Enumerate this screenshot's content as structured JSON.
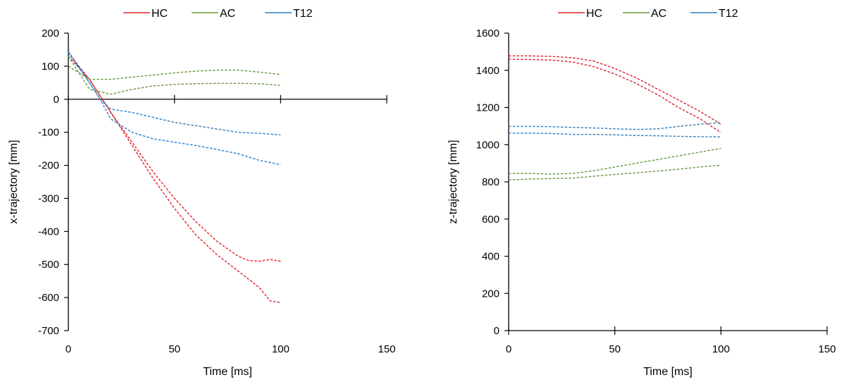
{
  "chart_data": [
    {
      "type": "line",
      "xlabel": "Time [ms]",
      "ylabel": "x-trajectory [mm]",
      "xlim": [
        0,
        150
      ],
      "ylim": [
        -700,
        200
      ],
      "xticks": [
        0,
        50,
        100,
        150
      ],
      "yticks": [
        200,
        100,
        0,
        -100,
        -200,
        -300,
        -400,
        -500,
        -600,
        -700
      ],
      "legend": {
        "position": "top",
        "entries": [
          {
            "label": "HC",
            "color": "#e0202a"
          },
          {
            "label": "AC",
            "color": "#6a9a3a"
          },
          {
            "label": "T12",
            "color": "#2a7ec4"
          }
        ]
      },
      "series": [
        {
          "group": "HC",
          "color": "#e0202a",
          "line": "dashed",
          "x": [
            0,
            10,
            20,
            30,
            40,
            50,
            60,
            70,
            80,
            90,
            95,
            100
          ],
          "y": [
            140,
            60,
            -40,
            -140,
            -240,
            -330,
            -410,
            -470,
            -520,
            -570,
            -610,
            -615
          ]
        },
        {
          "group": "HC",
          "color": "#e0202a",
          "line": "dashed",
          "x": [
            0,
            10,
            20,
            30,
            40,
            50,
            60,
            70,
            80,
            85,
            90,
            95,
            100
          ],
          "y": [
            130,
            60,
            -40,
            -130,
            -220,
            -300,
            -370,
            -430,
            -475,
            -488,
            -490,
            -485,
            -490
          ]
        },
        {
          "group": "AC",
          "color": "#6a9a3a",
          "line": "dashed",
          "x": [
            0,
            10,
            20,
            30,
            40,
            50,
            60,
            70,
            80,
            90,
            100
          ],
          "y": [
            100,
            60,
            60,
            67,
            73,
            80,
            85,
            88,
            88,
            82,
            75
          ]
        },
        {
          "group": "AC",
          "color": "#6a9a3a",
          "line": "dashed",
          "x": [
            0,
            10,
            20,
            30,
            40,
            50,
            60,
            70,
            80,
            90,
            100
          ],
          "y": [
            130,
            30,
            15,
            30,
            40,
            45,
            47,
            48,
            48,
            47,
            42
          ]
        },
        {
          "group": "T12",
          "color": "#2a7ec4",
          "line": "dashed",
          "x": [
            0,
            10,
            15,
            20,
            30,
            40,
            50,
            60,
            70,
            80,
            90,
            100
          ],
          "y": [
            140,
            50,
            0,
            -30,
            -40,
            -55,
            -70,
            -80,
            -90,
            -100,
            -103,
            -108
          ]
        },
        {
          "group": "T12",
          "color": "#2a7ec4",
          "line": "dashed",
          "x": [
            0,
            10,
            15,
            20,
            30,
            40,
            50,
            60,
            70,
            80,
            90,
            100
          ],
          "y": [
            145,
            50,
            0,
            -60,
            -100,
            -120,
            -130,
            -140,
            -152,
            -165,
            -185,
            -198
          ]
        }
      ]
    },
    {
      "type": "line",
      "xlabel": "Time [ms]",
      "ylabel": "z-trajectory [mm]",
      "xlim": [
        0,
        150
      ],
      "ylim": [
        0,
        1600
      ],
      "xticks": [
        0,
        50,
        100,
        150
      ],
      "yticks": [
        1600,
        1400,
        1200,
        1000,
        800,
        600,
        400,
        200,
        0
      ],
      "legend": {
        "position": "top",
        "entries": [
          {
            "label": "HC",
            "color": "#e0202a"
          },
          {
            "label": "AC",
            "color": "#6a9a3a"
          },
          {
            "label": "T12",
            "color": "#2a7ec4"
          }
        ]
      },
      "series": [
        {
          "group": "HC",
          "color": "#e0202a",
          "line": "dashed",
          "x": [
            0,
            10,
            20,
            30,
            40,
            50,
            60,
            70,
            80,
            90,
            100
          ],
          "y": [
            1478,
            1478,
            1475,
            1468,
            1450,
            1410,
            1360,
            1300,
            1240,
            1180,
            1110
          ]
        },
        {
          "group": "HC",
          "color": "#e0202a",
          "line": "dashed",
          "x": [
            0,
            10,
            20,
            30,
            40,
            50,
            60,
            70,
            80,
            90,
            100
          ],
          "y": [
            1460,
            1458,
            1455,
            1445,
            1420,
            1380,
            1330,
            1270,
            1200,
            1140,
            1065
          ]
        },
        {
          "group": "AC",
          "color": "#6a9a3a",
          "line": "dashed",
          "x": [
            0,
            10,
            20,
            30,
            40,
            50,
            60,
            70,
            80,
            90,
            100
          ],
          "y": [
            845,
            845,
            842,
            845,
            860,
            880,
            900,
            920,
            940,
            960,
            980
          ]
        },
        {
          "group": "AC",
          "color": "#6a9a3a",
          "line": "dashed",
          "x": [
            0,
            10,
            20,
            30,
            40,
            50,
            60,
            70,
            80,
            90,
            100
          ],
          "y": [
            810,
            815,
            818,
            820,
            830,
            840,
            848,
            858,
            868,
            880,
            890
          ]
        },
        {
          "group": "T12",
          "color": "#2a7ec4",
          "line": "dashed",
          "x": [
            0,
            10,
            20,
            30,
            40,
            50,
            60,
            70,
            80,
            90,
            100
          ],
          "y": [
            1098,
            1098,
            1097,
            1093,
            1090,
            1085,
            1082,
            1085,
            1098,
            1110,
            1118
          ]
        },
        {
          "group": "T12",
          "color": "#2a7ec4",
          "line": "dashed",
          "x": [
            0,
            10,
            20,
            30,
            40,
            50,
            60,
            70,
            80,
            90,
            100
          ],
          "y": [
            1062,
            1062,
            1060,
            1055,
            1055,
            1053,
            1050,
            1048,
            1045,
            1043,
            1042
          ]
        }
      ]
    }
  ]
}
